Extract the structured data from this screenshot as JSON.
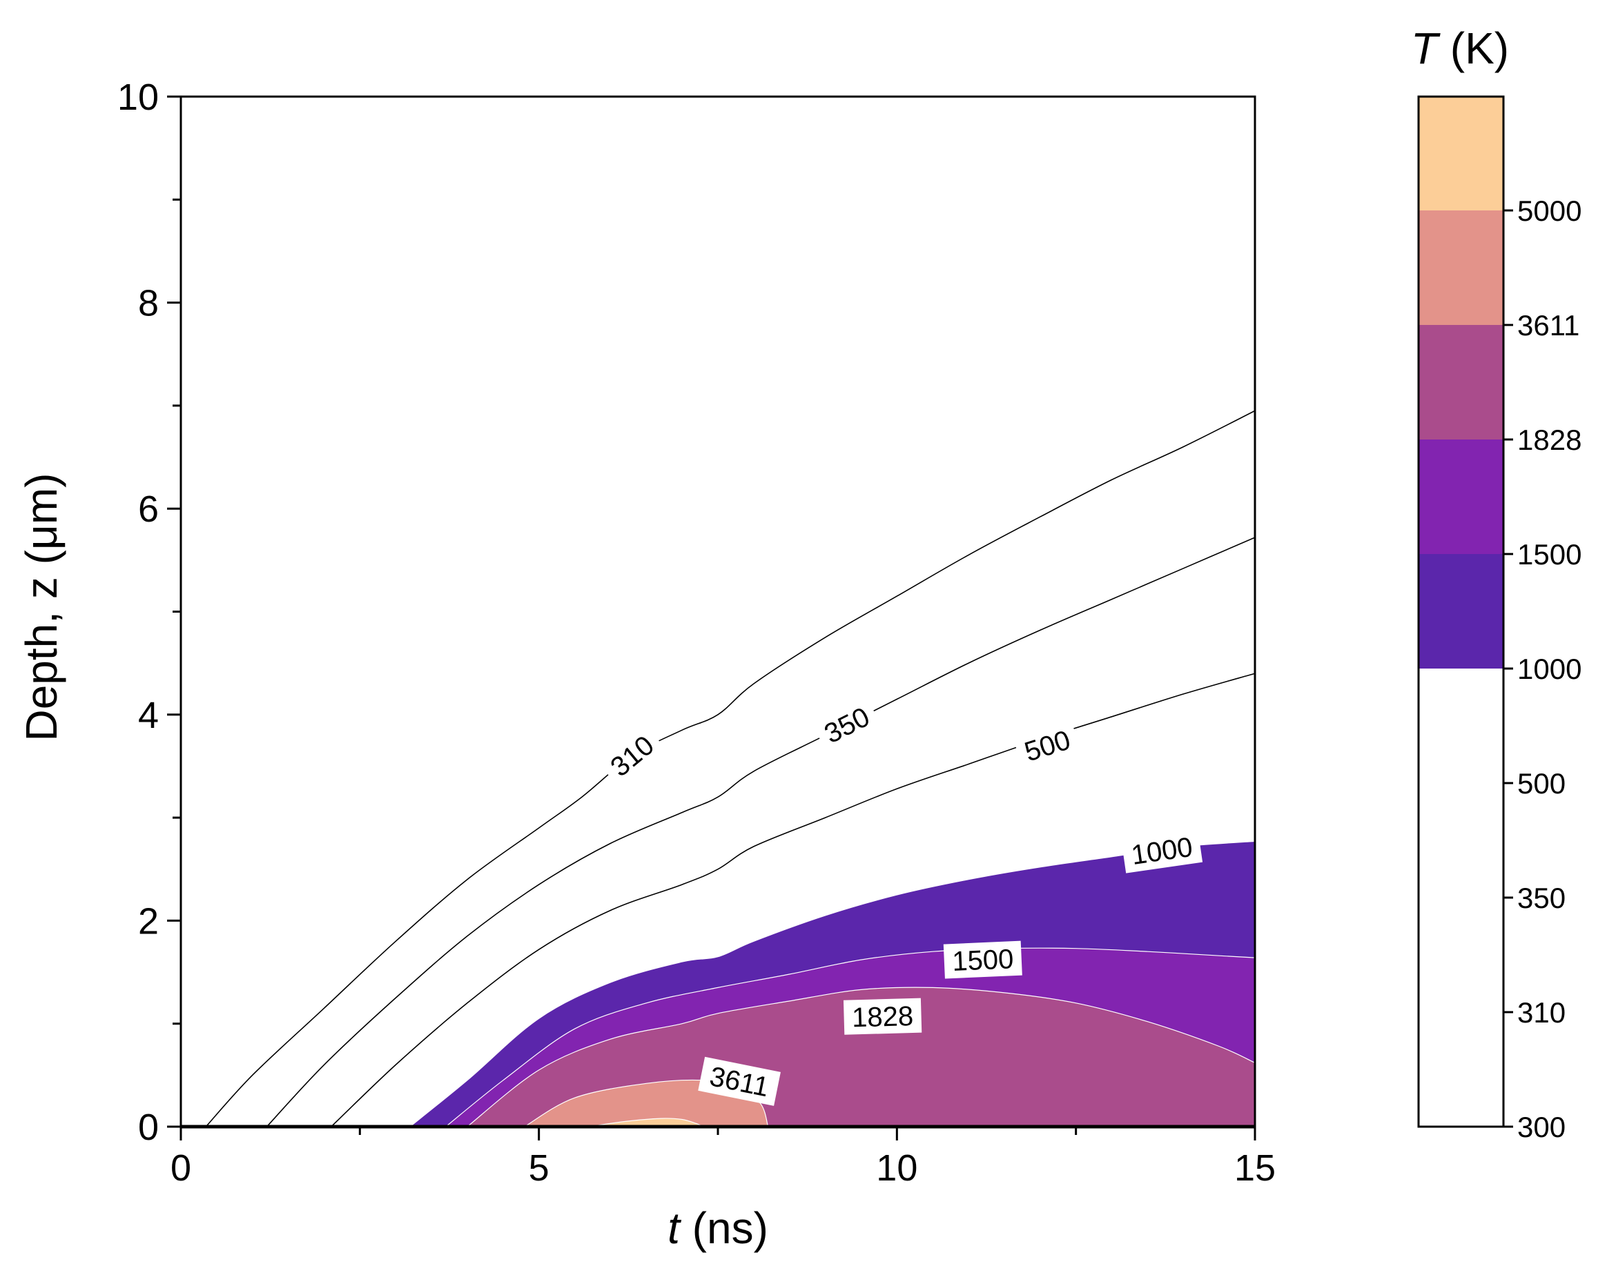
{
  "chart_data": {
    "type": "contour",
    "x_axis": {
      "label_var": "t",
      "label_unit": " (ns)",
      "range": [
        0,
        15
      ],
      "ticks": [
        0,
        5,
        10,
        15
      ]
    },
    "y_axis": {
      "label": "Depth, z (μm)",
      "range": [
        0,
        10
      ],
      "ticks": [
        0,
        2,
        4,
        6,
        8,
        10
      ]
    },
    "colorbar": {
      "title_var": "T",
      "title_unit": " (K)",
      "levels": [
        "300",
        "310",
        "350",
        "500",
        "1000",
        "1500",
        "1828",
        "3611",
        "5000"
      ],
      "bands": [
        {
          "from": "1000",
          "to": "1500",
          "color": "#5b26ab"
        },
        {
          "from": "1500",
          "to": "1828",
          "color": "#8224b0"
        },
        {
          "from": "1828",
          "to": "3611",
          "color": "#aa4c8c"
        },
        {
          "from": "3611",
          "to": "5000",
          "color": "#e3938a"
        },
        {
          "from": "5000",
          "to": "max",
          "color": "#fcce98"
        }
      ]
    },
    "isolines": [
      {
        "level": "310",
        "label": "310",
        "label_at": [
          6.3,
          3.6
        ],
        "points": [
          [
            0.35,
            0
          ],
          [
            1,
            0.5
          ],
          [
            2,
            1.15
          ],
          [
            3,
            1.8
          ],
          [
            4,
            2.4
          ],
          [
            5,
            2.9
          ],
          [
            5.6,
            3.2
          ],
          [
            6.3,
            3.6
          ],
          [
            7,
            3.85
          ],
          [
            7.5,
            4.0
          ],
          [
            8,
            4.3
          ],
          [
            9,
            4.75
          ],
          [
            10,
            5.15
          ],
          [
            11,
            5.55
          ],
          [
            12,
            5.92
          ],
          [
            13,
            6.28
          ],
          [
            14,
            6.6
          ],
          [
            15,
            6.95
          ]
        ]
      },
      {
        "level": "350",
        "label": "350",
        "label_at": [
          9.3,
          3.9
        ],
        "points": [
          [
            1.2,
            0
          ],
          [
            2,
            0.6
          ],
          [
            3,
            1.25
          ],
          [
            4,
            1.85
          ],
          [
            5,
            2.35
          ],
          [
            6,
            2.75
          ],
          [
            7,
            3.05
          ],
          [
            7.5,
            3.2
          ],
          [
            8,
            3.45
          ],
          [
            9,
            3.8
          ],
          [
            10,
            4.15
          ],
          [
            11,
            4.5
          ],
          [
            12,
            4.82
          ],
          [
            13,
            5.12
          ],
          [
            14,
            5.42
          ],
          [
            15,
            5.72
          ]
        ]
      },
      {
        "level": "500",
        "label": "500",
        "label_at": [
          12.1,
          3.7
        ],
        "points": [
          [
            2.1,
            0
          ],
          [
            3,
            0.6
          ],
          [
            4,
            1.2
          ],
          [
            5,
            1.72
          ],
          [
            6,
            2.1
          ],
          [
            7,
            2.35
          ],
          [
            7.5,
            2.5
          ],
          [
            8,
            2.72
          ],
          [
            9,
            3.0
          ],
          [
            10,
            3.28
          ],
          [
            11,
            3.52
          ],
          [
            12,
            3.76
          ],
          [
            13,
            3.98
          ],
          [
            14,
            4.2
          ],
          [
            15,
            4.4
          ]
        ]
      }
    ],
    "filled_regions": [
      {
        "level": "1000",
        "label": "1000",
        "label_at": [
          13.7,
          2.68
        ],
        "points": [
          [
            3.2,
            0
          ],
          [
            4,
            0.45
          ],
          [
            5,
            1.05
          ],
          [
            6,
            1.4
          ],
          [
            7,
            1.6
          ],
          [
            7.5,
            1.65
          ],
          [
            8,
            1.8
          ],
          [
            9,
            2.05
          ],
          [
            10,
            2.25
          ],
          [
            11,
            2.4
          ],
          [
            12,
            2.52
          ],
          [
            13,
            2.62
          ],
          [
            14,
            2.72
          ],
          [
            15,
            2.77
          ],
          [
            15,
            0
          ]
        ]
      },
      {
        "level": "1500",
        "label": "1500",
        "label_at": [
          11.2,
          1.62
        ],
        "points": [
          [
            3.7,
            0
          ],
          [
            4.5,
            0.45
          ],
          [
            5.5,
            0.95
          ],
          [
            6.5,
            1.2
          ],
          [
            7.5,
            1.35
          ],
          [
            8.5,
            1.48
          ],
          [
            9.5,
            1.62
          ],
          [
            10.5,
            1.7
          ],
          [
            11.5,
            1.73
          ],
          [
            12.5,
            1.73
          ],
          [
            13.5,
            1.7
          ],
          [
            14.5,
            1.66
          ],
          [
            15,
            1.64
          ],
          [
            15,
            0
          ]
        ]
      },
      {
        "level": "1828",
        "label": "1828",
        "label_at": [
          9.8,
          1.07
        ],
        "points": [
          [
            4,
            0
          ],
          [
            5,
            0.55
          ],
          [
            6,
            0.85
          ],
          [
            7,
            1.0
          ],
          [
            7.5,
            1.1
          ],
          [
            8.5,
            1.22
          ],
          [
            9.5,
            1.33
          ],
          [
            10.5,
            1.35
          ],
          [
            11.5,
            1.3
          ],
          [
            12.5,
            1.2
          ],
          [
            13.5,
            1.02
          ],
          [
            14.5,
            0.78
          ],
          [
            15,
            0.62
          ],
          [
            15,
            0
          ]
        ]
      },
      {
        "level": "3611",
        "label": "3611",
        "label_at": [
          7.8,
          0.44
        ],
        "points": [
          [
            4.8,
            0
          ],
          [
            5.5,
            0.28
          ],
          [
            6.5,
            0.42
          ],
          [
            7.3,
            0.45
          ],
          [
            7.8,
            0.38
          ],
          [
            8.1,
            0.22
          ],
          [
            8.2,
            0
          ],
          [
            8,
            0
          ]
        ]
      },
      {
        "level": "5000",
        "label": "",
        "label_at": null,
        "points": [
          [
            5.7,
            0
          ],
          [
            6.2,
            0.05
          ],
          [
            6.7,
            0.08
          ],
          [
            7.0,
            0.07
          ],
          [
            7.2,
            0.03
          ],
          [
            7.3,
            0
          ]
        ]
      }
    ]
  }
}
